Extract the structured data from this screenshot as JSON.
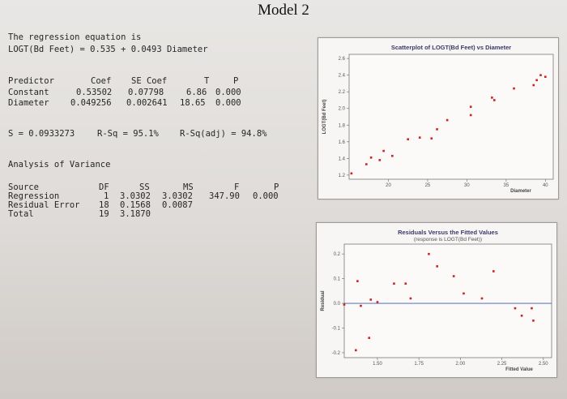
{
  "title": "Model 2",
  "equation": {
    "heading": "The regression equation is",
    "formula": "LOGT(Bd Feet) = 0.535 + 0.0493 Diameter"
  },
  "coef_table": {
    "headers": [
      "Predictor",
      "Coef",
      "SE Coef",
      "T",
      "P"
    ],
    "rows": [
      [
        "Constant",
        "0.53502",
        "0.07798",
        "6.86",
        "0.000"
      ],
      [
        "Diameter",
        "0.049256",
        "0.002641",
        "18.65",
        "0.000"
      ]
    ]
  },
  "fit_stats": {
    "s": "S = 0.0933273",
    "rsq": "R-Sq = 95.1%",
    "rsq_adj": "R-Sq(adj) = 94.8%"
  },
  "anova": {
    "heading": "Analysis of Variance",
    "headers": [
      "Source",
      "DF",
      "SS",
      "MS",
      "F",
      "P"
    ],
    "rows": [
      [
        "Regression",
        "1",
        "3.0302",
        "3.0302",
        "347.90",
        "0.000"
      ],
      [
        "Residual Error",
        "18",
        "0.1568",
        "0.0087",
        "",
        ""
      ],
      [
        "Total",
        "19",
        "3.1870",
        "",
        "",
        ""
      ]
    ]
  },
  "chart_data": [
    {
      "type": "scatter",
      "title": "Scatterplot of LOGT(Bd Feet) vs Diameter",
      "xlabel": "Diameter",
      "ylabel": "LOGT(Bd Feet)",
      "xlim": [
        15,
        41
      ],
      "ylim": [
        1.15,
        2.65
      ],
      "xticks": [
        20,
        25,
        30,
        35,
        40
      ],
      "xticklabels": [
        "20",
        "25",
        "30",
        "35",
        "40"
      ],
      "yticks": [
        1.2,
        1.4,
        1.6,
        1.8,
        2.0,
        2.2,
        2.4,
        2.6
      ],
      "yticklabels": [
        "1.2",
        "1.4",
        "1.6",
        "1.8",
        "2.0",
        "2.2",
        "2.4",
        "2.6"
      ],
      "color": "#cc2222",
      "x": [
        15.3,
        17.2,
        17.8,
        18.9,
        19.4,
        20.5,
        22.5,
        24.0,
        25.5,
        26.2,
        27.5,
        30.5,
        30.5,
        33.2,
        33.5,
        36.0,
        38.5,
        38.9,
        39.4,
        40.0
      ],
      "y": [
        1.22,
        1.33,
        1.41,
        1.38,
        1.49,
        1.43,
        1.63,
        1.65,
        1.64,
        1.75,
        1.86,
        1.92,
        2.02,
        2.13,
        2.1,
        2.24,
        2.28,
        2.34,
        2.4,
        2.38
      ]
    },
    {
      "type": "scatter",
      "title": "Residuals Versus the Fitted Values",
      "subtitle": "(response is LOGT(Bd Feet))",
      "xlabel": "Fitted Value",
      "ylabel": "Residual",
      "xlim": [
        1.3,
        2.55
      ],
      "ylim": [
        -0.22,
        0.24
      ],
      "xticks": [
        1.5,
        1.75,
        2.0,
        2.25,
        2.5
      ],
      "xticklabels": [
        "1.50",
        "1.75",
        "2.00",
        "2.25",
        "2.50"
      ],
      "yticks": [
        -0.2,
        -0.1,
        0.0,
        0.1,
        0.2
      ],
      "yticklabels": [
        "-0.2",
        "-0.1",
        "0.0",
        "0.1",
        "0.2"
      ],
      "reference_line": 0.0,
      "color": "#cc2222",
      "x": [
        1.3,
        1.37,
        1.38,
        1.4,
        1.45,
        1.46,
        1.5,
        1.6,
        1.67,
        1.7,
        1.81,
        1.86,
        1.96,
        2.02,
        2.13,
        2.2,
        2.33,
        2.37,
        2.43,
        2.44
      ],
      "y": [
        -0.005,
        -0.19,
        0.09,
        -0.01,
        -0.14,
        0.015,
        0.005,
        0.08,
        0.08,
        0.02,
        0.2,
        0.15,
        0.11,
        0.04,
        0.02,
        0.13,
        -0.02,
        -0.05,
        -0.02,
        -0.07
      ]
    }
  ]
}
